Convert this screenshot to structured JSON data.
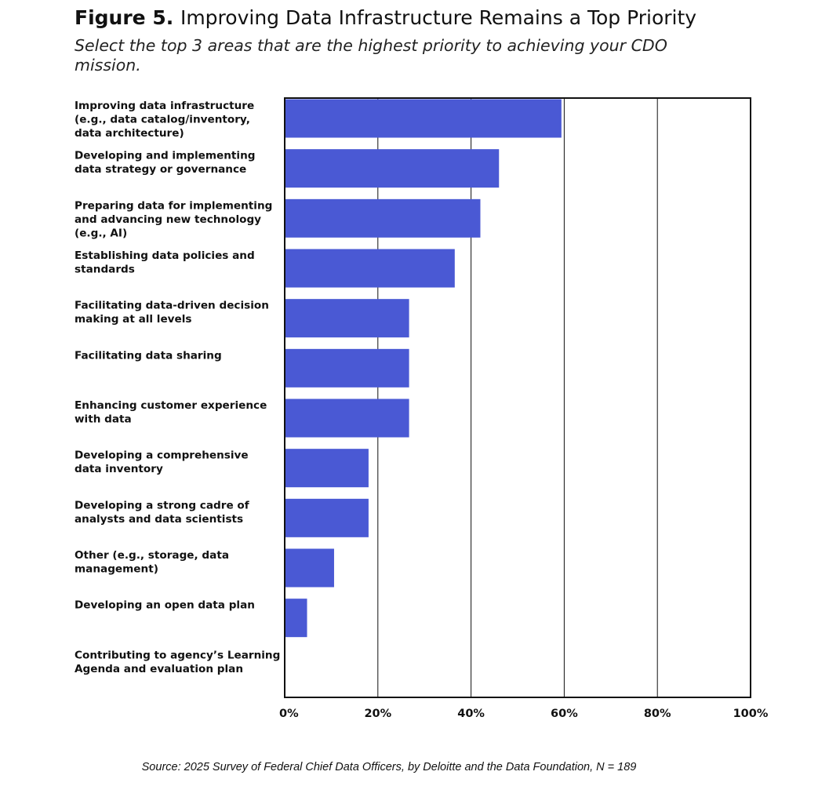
{
  "title": {
    "figure_label": "Figure 5.",
    "text": "Improving Data Infrastructure Remains a Top Priority"
  },
  "subtitle": "Select the top 3 areas that are the highest priority to achieving your CDO mission.",
  "source": "Source: 2025 Survey of Federal Chief Data Officers, by Deloitte and the Data Foundation, N = 189",
  "colors": {
    "bar": "#4a59d4",
    "grid": "#111111",
    "frame": "#111111"
  },
  "chart_data": {
    "type": "bar",
    "orientation": "horizontal",
    "categories": [
      [
        "Improving data infrastructure",
        "(e.g., data catalog/inventory,",
        "data architecture)"
      ],
      [
        "Developing and implementing",
        "data strategy or governance"
      ],
      [
        "Preparing data for implementing",
        "and advancing new technology",
        "(e.g., AI)"
      ],
      [
        "Establishing data policies and",
        "standards"
      ],
      [
        "Facilitating data-driven decision",
        "making at all levels"
      ],
      [
        "Facilitating data sharing"
      ],
      [
        "Enhancing customer experience",
        "with data"
      ],
      [
        "Developing a comprehensive",
        "data inventory"
      ],
      [
        "Developing a strong cadre of",
        "analysts and data scientists"
      ],
      [
        "Other (e.g., storage, data",
        "management)"
      ],
      [
        "Developing an open data plan"
      ],
      [
        "Contributing to agency’s Learning",
        "Agenda and evaluation plan"
      ]
    ],
    "values": [
      59.4,
      46.0,
      42.0,
      36.5,
      26.7,
      26.7,
      26.7,
      18.0,
      18.0,
      10.6,
      4.8,
      0
    ],
    "xlim": [
      0,
      100
    ],
    "xticks": [
      0,
      20,
      40,
      60,
      80,
      100
    ],
    "xtick_labels": [
      "0%",
      "20%",
      "40%",
      "60%",
      "80%",
      "100%"
    ],
    "grid": "vertical"
  }
}
